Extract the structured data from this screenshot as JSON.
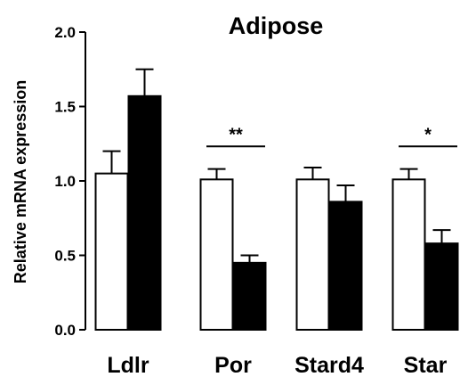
{
  "chart_data": {
    "type": "bar",
    "title": "Adipose",
    "xlabel": "",
    "ylabel": "Relative mRNA expression",
    "ylim": [
      0,
      2.0
    ],
    "yticks": [
      "0.0",
      "0.5",
      "1.0",
      "1.5",
      "2.0"
    ],
    "categories": [
      "Ldlr",
      "Por",
      "Stard4",
      "Star"
    ],
    "series": [
      {
        "fill": "#ffffff",
        "values": [
          1.05,
          1.01,
          1.01,
          1.01
        ],
        "errors": [
          0.15,
          0.07,
          0.08,
          0.07
        ]
      },
      {
        "fill": "#000000",
        "values": [
          1.57,
          0.45,
          0.86,
          0.58
        ],
        "errors": [
          0.18,
          0.05,
          0.11,
          0.09
        ]
      }
    ],
    "significance": [
      {
        "category": "Por",
        "label": "**",
        "y": 1.25
      },
      {
        "category": "Star",
        "label": "*",
        "y": 1.25
      }
    ],
    "grid": false,
    "legend": "none"
  }
}
